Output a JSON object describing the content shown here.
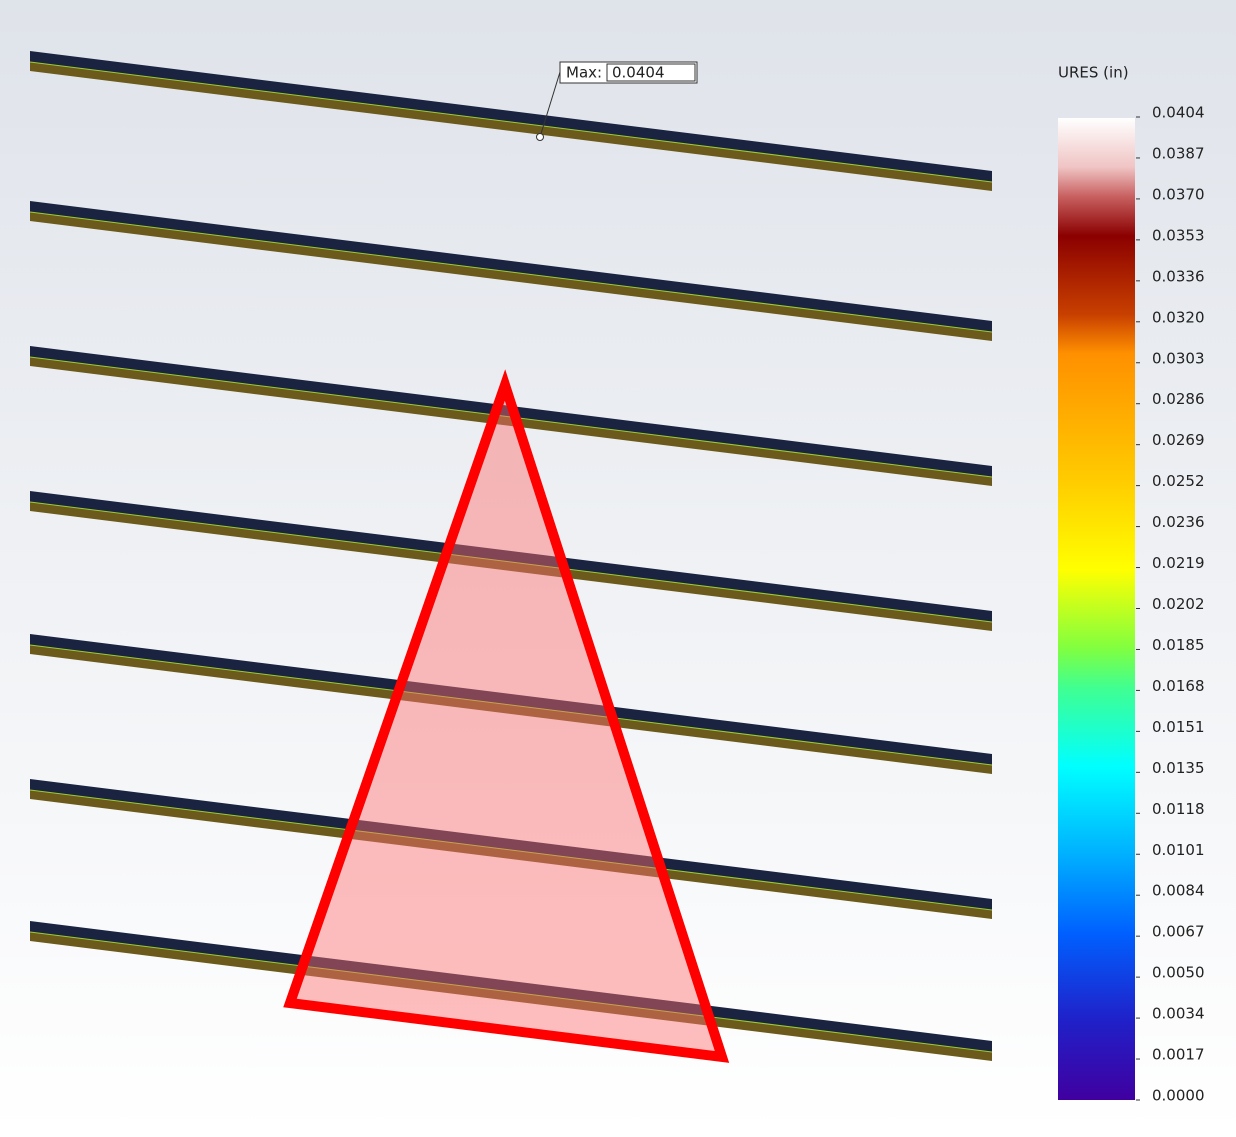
{
  "legend": {
    "title": "URES (in)",
    "labels": [
      "0.0404",
      "0.0387",
      "0.0370",
      "0.0353",
      "0.0336",
      "0.0320",
      "0.0303",
      "0.0286",
      "0.0269",
      "0.0252",
      "0.0236",
      "0.0219",
      "0.0202",
      "0.0185",
      "0.0168",
      "0.0151",
      "0.0135",
      "0.0118",
      "0.0101",
      "0.0084",
      "0.0067",
      "0.0050",
      "0.0034",
      "0.0017",
      "0.0000"
    ]
  },
  "probe": {
    "label": "Max:",
    "value": "0.0404"
  }
}
